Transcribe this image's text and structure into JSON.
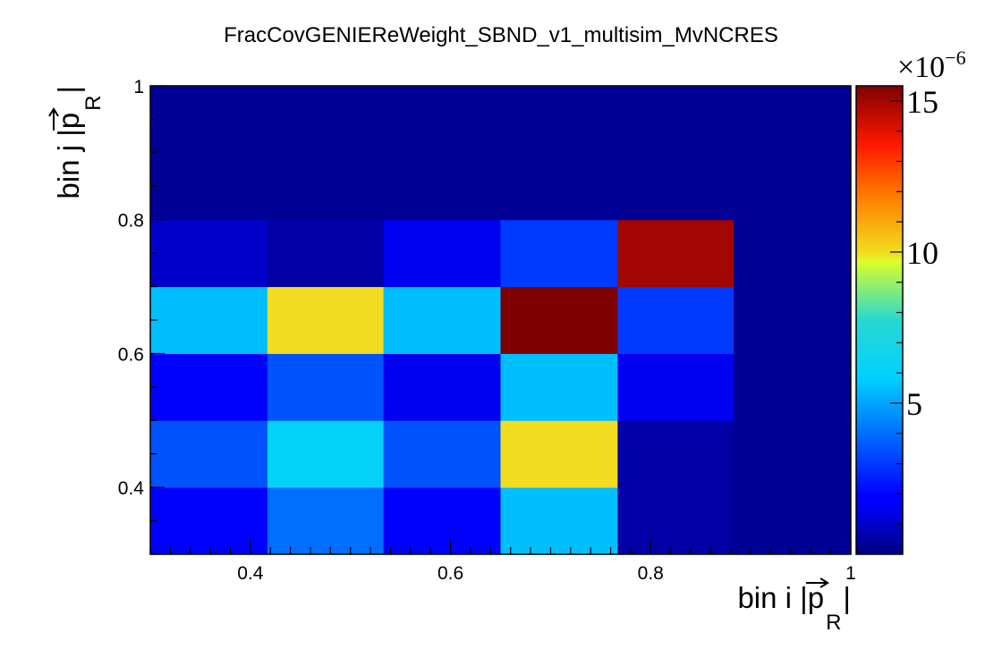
{
  "chart_data": {
    "type": "heatmap",
    "title": "FracCovGENIEReWeight_SBND_v1_multisim_MvNCRES",
    "xlabel": {
      "main": "bin i |p",
      "subscript": "R",
      "suffix": "|"
    },
    "ylabel": {
      "main": "bin j |p",
      "subscript": "R",
      "suffix": "|"
    },
    "xlim": [
      0.3,
      1.0
    ],
    "ylim": [
      0.3,
      1.0
    ],
    "x_tick_labels": [
      "0.4",
      "0.6",
      "0.8",
      "1"
    ],
    "x_tick_values": [
      0.4,
      0.6,
      0.8,
      1.0
    ],
    "y_tick_labels": [
      "0.4",
      "0.6",
      "0.8",
      "1"
    ],
    "y_tick_values": [
      0.4,
      0.6,
      0.8,
      1.0
    ],
    "x_bin_edges": [
      0.3,
      0.417,
      0.533,
      0.65,
      0.767,
      0.883,
      1.0
    ],
    "y_bin_edges": [
      0.3,
      0.4,
      0.5,
      0.6,
      0.7,
      0.8,
      1.0
    ],
    "z_range": [
      0,
      15.5
    ],
    "colorbar": {
      "exponent_label": "×10",
      "exponent_power": "−6",
      "tick_values": [
        5,
        10,
        15
      ],
      "tick_labels": [
        "5",
        "10",
        "15"
      ]
    },
    "values": [
      [
        1.8,
        4.0,
        1.8,
        5.5,
        0.5,
        0.3
      ],
      [
        3.5,
        6.0,
        3.5,
        10.0,
        0.5,
        0.3
      ],
      [
        1.8,
        3.5,
        1.5,
        5.5,
        1.5,
        0.3
      ],
      [
        5.5,
        10.0,
        5.5,
        15.5,
        3.0,
        0.3
      ],
      [
        1.0,
        0.5,
        1.5,
        3.0,
        15.0,
        0.3
      ],
      [
        0.3,
        0.3,
        0.3,
        0.3,
        0.3,
        0.3
      ]
    ],
    "grid": false,
    "colormap": "jet"
  }
}
